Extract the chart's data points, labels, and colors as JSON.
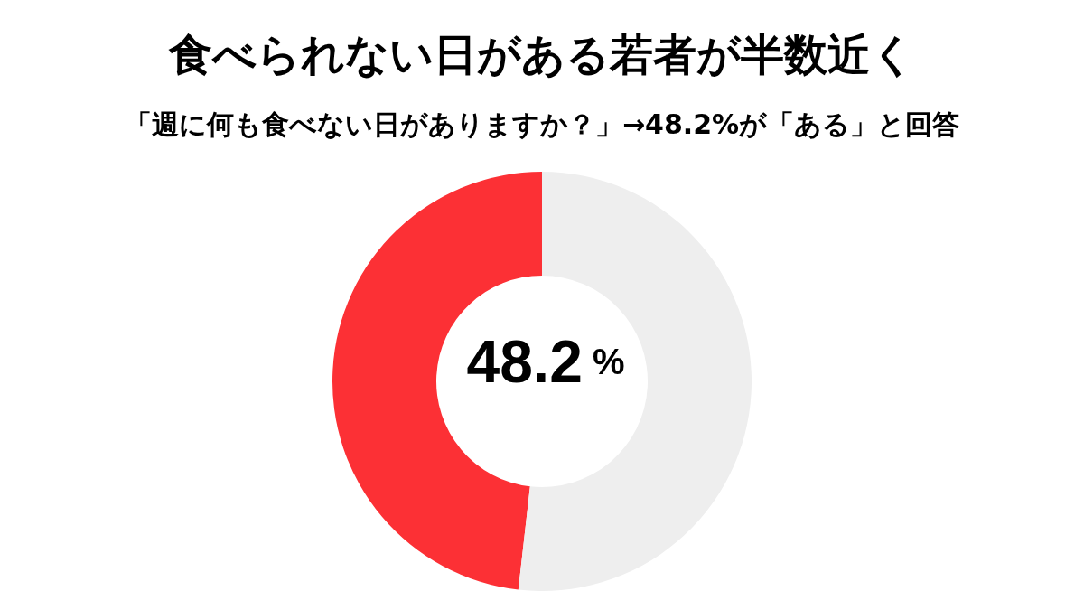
{
  "chart_data": {
    "type": "donut",
    "title": "食べられない日がある若者が半数近く",
    "subtitle": "「週に何も食べない日がありますか？」→48.2%が「ある」と回答",
    "categories": [
      null,
      null
    ],
    "values": [
      48.2,
      51.8
    ],
    "colors": [
      "#fc3035",
      "#eeeeee"
    ],
    "value_labels": [
      "48.2 %",
      null
    ],
    "legend": false
  }
}
